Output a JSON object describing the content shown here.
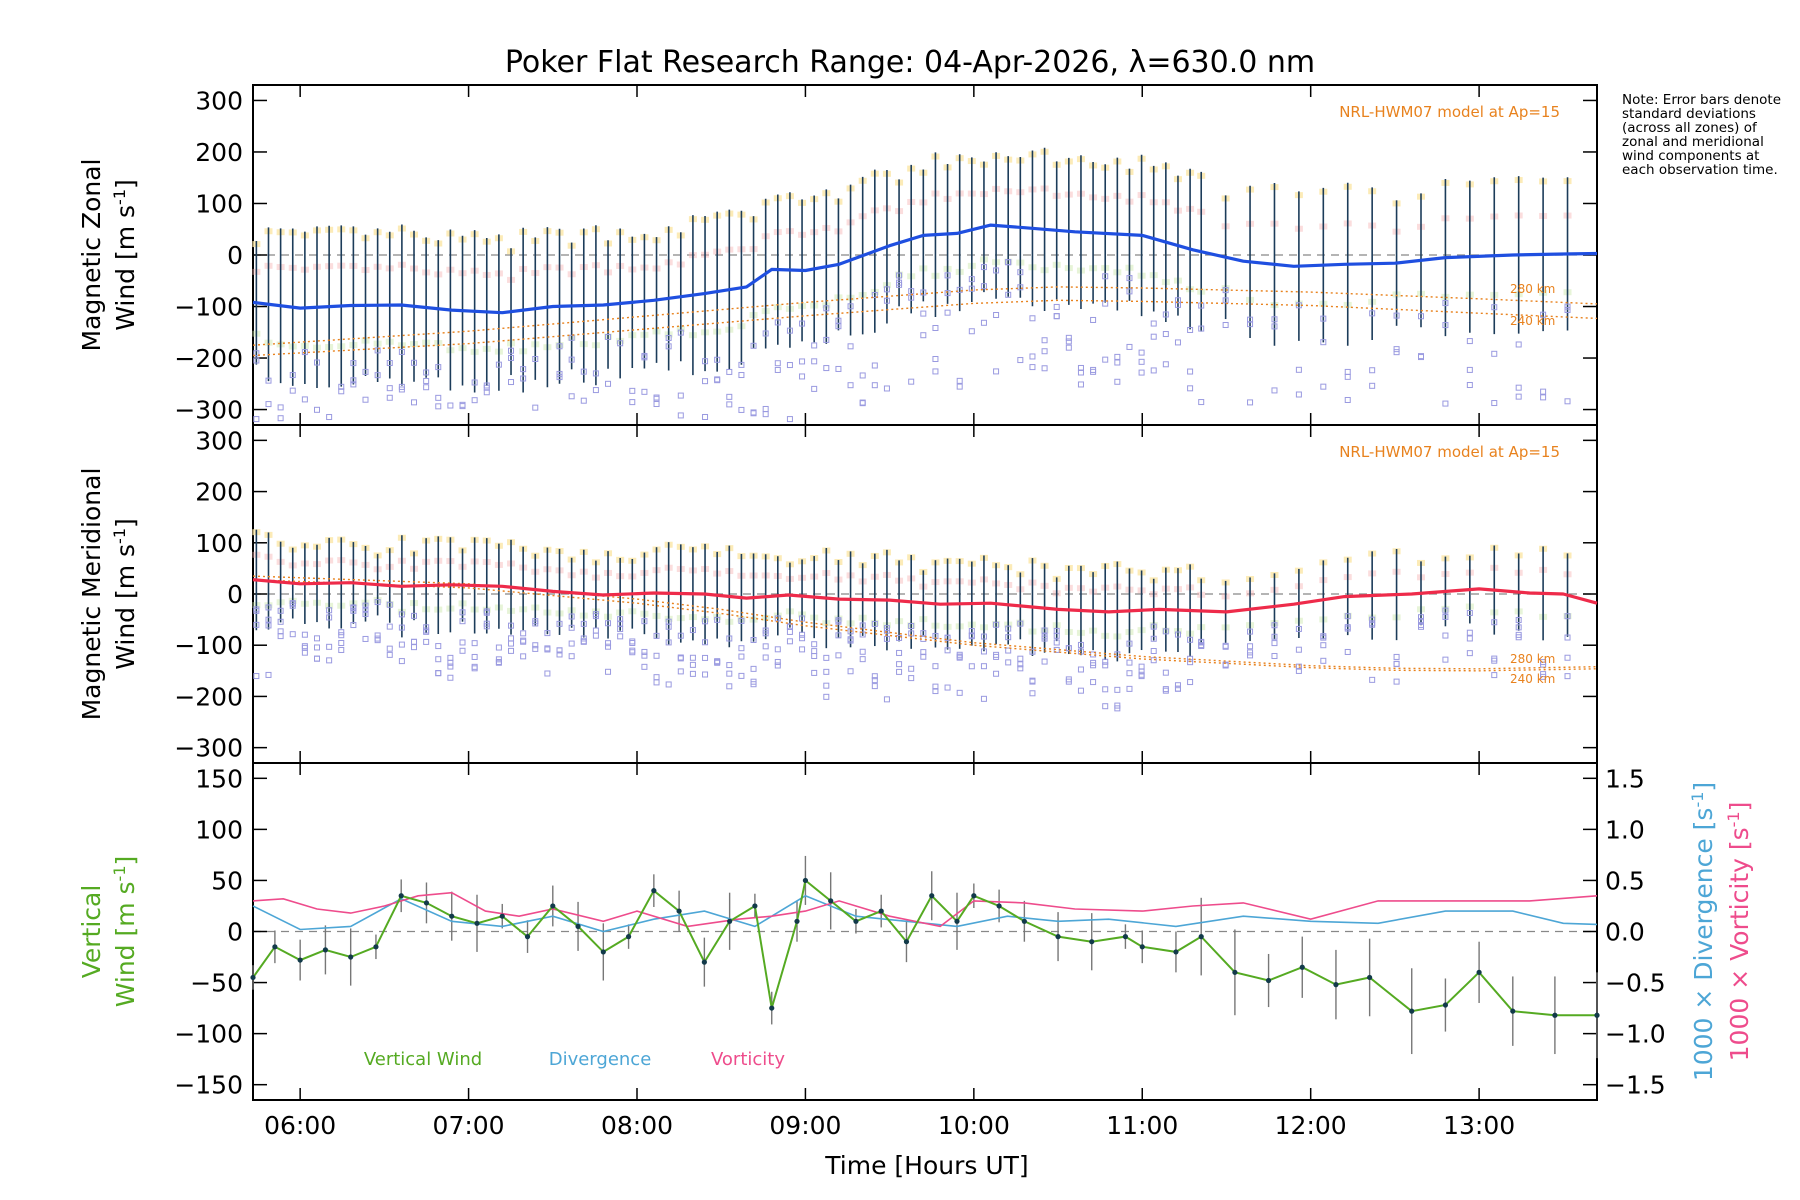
{
  "title": "Poker Flat Research Range: 04-Apr-2026, λ=630.0 nm",
  "note": "Note: Error bars denote standard deviations (across all zones) of zonal and meridional wind components at each observation time.",
  "time_axis": {
    "xlabel": "Time [Hours UT]",
    "xlim": [
      5.72,
      13.7
    ],
    "tick_labels": [
      "06:00",
      "07:00",
      "08:00",
      "09:00",
      "10:00",
      "11:00",
      "12:00",
      "13:00"
    ],
    "tick_values": [
      6,
      7,
      8,
      9,
      10,
      11,
      12,
      13
    ]
  },
  "colors": {
    "zonal_line": "#1f4fe0",
    "meridional_line": "#ee2b4a",
    "model": "#e8821e",
    "vertical": "#55aa22",
    "divergence": "#4da6d6",
    "vorticity": "#ee4c8c",
    "scatter": "#9a9ae0",
    "error_bar": "#1c3c5a"
  },
  "chart_data": [
    {
      "type": "line",
      "panel": "zonal",
      "ylabel_line1": "Magnetic Zonal",
      "ylabel_line2": "Wind [m s",
      "ylabel_sup": "-1",
      "ylabel_close": "]",
      "ylim": [
        -330,
        330
      ],
      "yticks": [
        -300,
        -200,
        -100,
        0,
        100,
        200,
        300
      ],
      "ytick_labels": [
        "−300",
        "−200",
        "−100",
        "0",
        "100",
        "200",
        "300"
      ],
      "model_label": "NRL-HWM07 model at Ap=15",
      "model_curves": [
        {
          "name": "280 km",
          "x": [
            5.72,
            7,
            8,
            9,
            10,
            10.5,
            11,
            12,
            13,
            13.7
          ],
          "y": [
            -175,
            -148,
            -120,
            -92,
            -68,
            -62,
            -64,
            -72,
            -85,
            -95
          ]
        },
        {
          "name": "240 km",
          "x": [
            5.72,
            7,
            8,
            9,
            10,
            10.5,
            11,
            12,
            13,
            13.7
          ],
          "y": [
            -195,
            -172,
            -145,
            -118,
            -94,
            -88,
            -90,
            -98,
            -113,
            -123
          ]
        }
      ],
      "series": [
        {
          "name": "Magnetic Zonal Wind",
          "x": [
            5.72,
            6.0,
            6.3,
            6.6,
            6.9,
            7.2,
            7.5,
            7.8,
            8.1,
            8.4,
            8.65,
            8.8,
            9.0,
            9.2,
            9.5,
            9.7,
            9.9,
            10.1,
            10.3,
            10.6,
            11.0,
            11.3,
            11.6,
            11.9,
            12.2,
            12.5,
            12.8,
            13.2,
            13.5,
            13.7
          ],
          "y": [
            -92,
            -103,
            -98,
            -97,
            -107,
            -112,
            -100,
            -97,
            -88,
            -75,
            -62,
            -28,
            -30,
            -18,
            18,
            38,
            42,
            58,
            53,
            45,
            38,
            10,
            -12,
            -22,
            -18,
            -16,
            -5,
            0,
            2,
            3
          ]
        }
      ]
    },
    {
      "type": "line",
      "panel": "meridional",
      "ylabel_line1": "Magnetic Meridional",
      "ylabel_line2": "Wind [m s",
      "ylabel_sup": "-1",
      "ylabel_close": "]",
      "ylim": [
        -330,
        330
      ],
      "yticks": [
        -300,
        -200,
        -100,
        0,
        100,
        200,
        300
      ],
      "ytick_labels": [
        "−300",
        "−200",
        "−100",
        "0",
        "100",
        "200",
        "300"
      ],
      "model_label": "NRL-HWM07 model at Ap=15",
      "model_curves": [
        {
          "name": "280 km",
          "x": [
            5.72,
            7,
            8,
            8.5,
            9,
            10,
            11,
            12,
            12.5,
            13,
            13.7
          ],
          "y": [
            35,
            20,
            -10,
            -30,
            -55,
            -95,
            -122,
            -140,
            -145,
            -146,
            -142
          ]
        },
        {
          "name": "240 km",
          "x": [
            5.72,
            7,
            8,
            8.5,
            9,
            10,
            11,
            12,
            12.5,
            13,
            13.7
          ],
          "y": [
            28,
            12,
            -18,
            -38,
            -62,
            -100,
            -127,
            -144,
            -149,
            -150,
            -146
          ]
        }
      ],
      "series": [
        {
          "name": "Magnetic Meridional Wind",
          "x": [
            5.72,
            6.0,
            6.3,
            6.6,
            6.9,
            7.2,
            7.5,
            7.8,
            8.1,
            8.4,
            8.65,
            8.9,
            9.2,
            9.5,
            9.8,
            10.1,
            10.5,
            10.8,
            11.1,
            11.5,
            11.9,
            12.2,
            12.6,
            13.0,
            13.3,
            13.5,
            13.7
          ],
          "y": [
            28,
            20,
            22,
            15,
            18,
            15,
            5,
            -2,
            2,
            0,
            -8,
            -2,
            -10,
            -12,
            -20,
            -18,
            -30,
            -35,
            -30,
            -35,
            -20,
            -5,
            0,
            10,
            2,
            0,
            -18
          ]
        }
      ]
    },
    {
      "type": "line",
      "panel": "vertical",
      "ylabel_line1": "Vertical",
      "ylabel_line2": "Wind [m s",
      "ylabel_sup": "-1",
      "ylabel_close": "]",
      "ylim": [
        -165,
        165
      ],
      "yticks": [
        -150,
        -100,
        -50,
        0,
        50,
        100,
        150
      ],
      "ytick_labels": [
        "−150",
        "−100",
        "−50",
        "0",
        "50",
        "100",
        "150"
      ],
      "right_axis": {
        "ylim": [
          -1.65,
          1.65
        ],
        "yticks": [
          -1.5,
          -1.0,
          -0.5,
          0.0,
          0.5,
          1.0,
          1.5
        ],
        "ytick_labels": [
          "−1.5",
          "−1.0",
          "−0.5",
          "0.0",
          "0.5",
          "1.0",
          "1.5"
        ],
        "label_divergence": "1000 × Divergence [s",
        "label_vorticity": "1000 × Vorticity [s",
        "label_sup": "-1",
        "label_close": "]"
      },
      "legend": [
        "Vertical Wind",
        "Divergence",
        "Vorticity"
      ],
      "series": [
        {
          "name": "Vertical Wind",
          "x": [
            5.72,
            5.85,
            6.0,
            6.15,
            6.3,
            6.45,
            6.6,
            6.75,
            6.9,
            7.05,
            7.2,
            7.35,
            7.5,
            7.65,
            7.8,
            7.95,
            8.1,
            8.25,
            8.4,
            8.55,
            8.7,
            8.8,
            8.95,
            9.0,
            9.15,
            9.3,
            9.45,
            9.6,
            9.75,
            9.9,
            10.0,
            10.15,
            10.3,
            10.5,
            10.7,
            10.9,
            11.0,
            11.2,
            11.35,
            11.55,
            11.75,
            11.95,
            12.15,
            12.35,
            12.6,
            12.8,
            13.0,
            13.2,
            13.45,
            13.7
          ],
          "y": [
            -45,
            -15,
            -28,
            -18,
            -25,
            -15,
            35,
            28,
            15,
            8,
            15,
            -5,
            25,
            5,
            -20,
            -5,
            40,
            20,
            -30,
            10,
            25,
            -75,
            10,
            50,
            30,
            10,
            20,
            -10,
            35,
            10,
            35,
            25,
            10,
            -5,
            -10,
            -5,
            -15,
            -20,
            -5,
            -40,
            -48,
            -35,
            -52,
            -45,
            -78,
            -72,
            -40,
            -78,
            -82,
            -82
          ]
        },
        {
          "name": "Divergence",
          "x": [
            5.72,
            6.0,
            6.3,
            6.6,
            6.9,
            7.2,
            7.5,
            7.8,
            8.1,
            8.4,
            8.7,
            9.0,
            9.3,
            9.6,
            9.9,
            10.2,
            10.5,
            10.8,
            11.2,
            11.6,
            12.0,
            12.4,
            12.8,
            13.2,
            13.5,
            13.7
          ],
          "y": [
            0.25,
            0.02,
            0.05,
            0.32,
            0.1,
            0.05,
            0.15,
            0.0,
            0.12,
            0.2,
            0.05,
            0.35,
            0.15,
            0.1,
            0.05,
            0.15,
            0.1,
            0.12,
            0.05,
            0.15,
            0.1,
            0.08,
            0.2,
            0.2,
            0.08,
            0.07
          ]
        },
        {
          "name": "Vorticity",
          "x": [
            5.72,
            5.9,
            6.1,
            6.3,
            6.5,
            6.7,
            6.9,
            7.1,
            7.3,
            7.5,
            7.8,
            8.0,
            8.3,
            8.6,
            8.8,
            9.0,
            9.2,
            9.5,
            9.8,
            10.0,
            10.3,
            10.6,
            11.0,
            11.3,
            11.6,
            12.0,
            12.4,
            12.8,
            13.0,
            13.3,
            13.7
          ],
          "y": [
            0.3,
            0.32,
            0.22,
            0.18,
            0.25,
            0.35,
            0.38,
            0.2,
            0.15,
            0.22,
            0.1,
            0.2,
            0.05,
            0.12,
            0.15,
            0.2,
            0.3,
            0.15,
            0.05,
            0.3,
            0.28,
            0.22,
            0.2,
            0.25,
            0.28,
            0.12,
            0.3,
            0.3,
            0.3,
            0.3,
            0.35
          ]
        }
      ]
    }
  ]
}
